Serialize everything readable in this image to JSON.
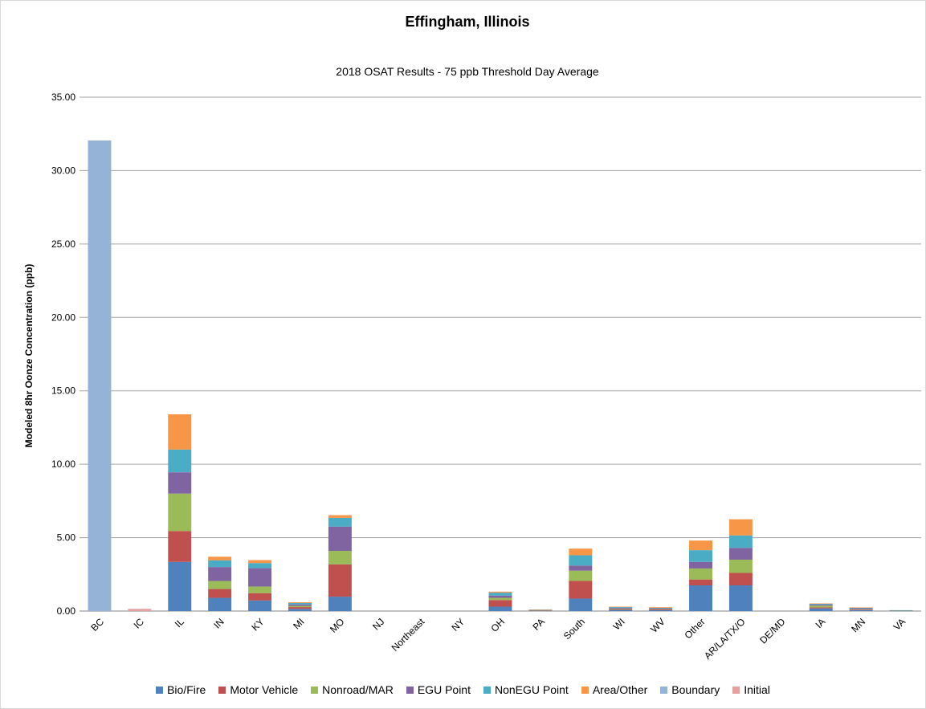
{
  "chart_data": {
    "type": "bar",
    "stacked": true,
    "title": "Effingham, Illinois",
    "subtitle": "2018 OSAT Results - 75 ppb Threshold Day Average",
    "ylabel": "Modeled 8hr Oonze Concentration (ppb)",
    "xlabel": "",
    "ylim": [
      0,
      35
    ],
    "yticks": [
      "0.00",
      "5.00",
      "10.00",
      "15.00",
      "20.00",
      "25.00",
      "30.00",
      "35.00"
    ],
    "grid": true,
    "legend_position": "bottom",
    "categories": [
      "BC",
      "IC",
      "IL",
      "IN",
      "KY",
      "MI",
      "MO",
      "NJ",
      "Northeast",
      "NY",
      "OH",
      "PA",
      "South",
      "WI",
      "WV",
      "Other",
      "AR/LA/TX/O",
      "DE/MD",
      "IA",
      "MN",
      "VA"
    ],
    "series": [
      {
        "name": "Bio/Fire",
        "color": "#4f81bd",
        "values": [
          0,
          0,
          3.35,
          0.9,
          0.72,
          0.15,
          0.98,
          0,
          0,
          0,
          0.3,
          0.02,
          0.85,
          0.08,
          0.06,
          1.75,
          1.75,
          0,
          0.18,
          0.06,
          0.02
        ]
      },
      {
        "name": "Motor Vehicle",
        "color": "#c0504d",
        "values": [
          0,
          0,
          2.1,
          0.6,
          0.5,
          0.12,
          2.2,
          0,
          0,
          0,
          0.45,
          0.02,
          1.2,
          0.05,
          0.05,
          0.4,
          0.85,
          0,
          0.07,
          0.04,
          0.01
        ]
      },
      {
        "name": "Nonroad/MAR",
        "color": "#9bbb59",
        "values": [
          0,
          0,
          2.55,
          0.55,
          0.45,
          0.08,
          0.92,
          0,
          0,
          0,
          0.15,
          0.01,
          0.7,
          0.04,
          0.03,
          0.75,
          0.9,
          0,
          0.12,
          0.03,
          0.01
        ]
      },
      {
        "name": "EGU Point",
        "color": "#8064a2",
        "values": [
          0,
          0,
          1.45,
          0.95,
          1.25,
          0.1,
          1.65,
          0,
          0,
          0,
          0.15,
          0.02,
          0.35,
          0.06,
          0.05,
          0.45,
          0.8,
          0,
          0.08,
          0.06,
          0.01
        ]
      },
      {
        "name": "NonEGU Point",
        "color": "#4bacc6",
        "values": [
          0,
          0,
          1.55,
          0.45,
          0.35,
          0.1,
          0.6,
          0,
          0,
          0,
          0.2,
          0.02,
          0.7,
          0.05,
          0.03,
          0.8,
          0.85,
          0,
          0.05,
          0.04,
          0.01
        ]
      },
      {
        "name": "Area/Other",
        "color": "#f79646",
        "values": [
          0,
          0,
          2.4,
          0.25,
          0.2,
          0.05,
          0.18,
          0,
          0,
          0,
          0.07,
          0.01,
          0.45,
          0.02,
          0.04,
          0.65,
          1.1,
          0,
          0.02,
          0.02,
          0.0
        ]
      },
      {
        "name": "Boundary",
        "color": "#95b3d7",
        "values": [
          32.05,
          0,
          0,
          0,
          0,
          0,
          0,
          0,
          0,
          0,
          0,
          0,
          0,
          0,
          0,
          0,
          0,
          0,
          0,
          0,
          0
        ]
      },
      {
        "name": "Initial",
        "color": "#e6a0a0",
        "values": [
          0,
          0.15,
          0,
          0,
          0,
          0,
          0,
          0,
          0,
          0,
          0,
          0,
          0,
          0,
          0,
          0,
          0,
          0,
          0,
          0,
          0
        ]
      }
    ]
  }
}
